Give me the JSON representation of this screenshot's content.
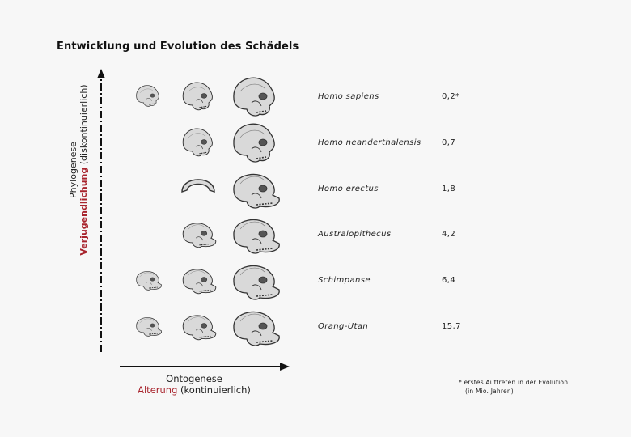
{
  "title": "Entwicklung und Evolution des Schädels",
  "y_axis": {
    "line1": "Phylogenese",
    "line2_accent": "Verjugendlichung",
    "line2_rest": " (diskontinuierlich)"
  },
  "x_axis": {
    "line1": "Ontogenese",
    "line2_accent": "Alterung",
    "line2_rest": " (kontinuierlich)"
  },
  "rows": [
    {
      "species": "Homo sapiens",
      "age": "0,2*",
      "skulls": [
        "infant",
        "juvenile",
        "adult"
      ]
    },
    {
      "species": "Homo neanderthalensis",
      "age": "0,7",
      "skulls": [
        "",
        "juvenile",
        "adult"
      ]
    },
    {
      "species": "Homo erectus",
      "age": "1,8",
      "skulls": [
        "",
        "fragment",
        "adult"
      ]
    },
    {
      "species": "Australopithecus",
      "age": "4,2",
      "skulls": [
        "",
        "juvenile",
        "adult"
      ]
    },
    {
      "species": "Schimpanse",
      "age": "6,4",
      "skulls": [
        "infant",
        "juvenile",
        "adult"
      ]
    },
    {
      "species": "Orang-Utan",
      "age": "15,7",
      "skulls": [
        "infant",
        "juvenile",
        "adult"
      ]
    }
  ],
  "footnote": {
    "line1": "* erstes Auftreten in der Evolution",
    "line2": "(in Mio. Jahren)"
  },
  "colors": {
    "accent": "#a8242d",
    "axis": "#111111",
    "skull_fill": "#d9d9d9",
    "skull_stroke": "#333333"
  }
}
